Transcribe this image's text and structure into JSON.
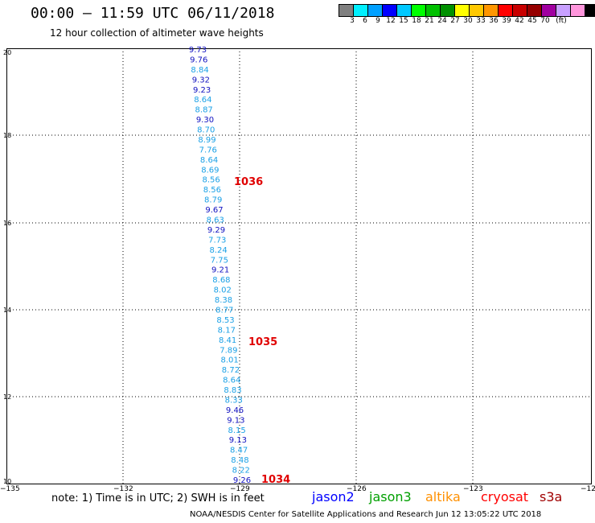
{
  "header": {
    "title": "00:00 – 11:59 UTC 06/11/2018",
    "subtitle": "12 hour collection of altimeter wave heights"
  },
  "legend": {
    "colors": [
      "#808080",
      "#00f0ff",
      "#00a0ff",
      "#0000ff",
      "#00c8ff",
      "#00ff00",
      "#00c000",
      "#009000",
      "#ffff00",
      "#ffc800",
      "#ff9600",
      "#ff0000",
      "#c80000",
      "#960000",
      "#a000a0",
      "#c8a0ff",
      "#ff96dc",
      "#000000"
    ],
    "labels": [
      "3",
      "6",
      "9",
      "12",
      "15",
      "18",
      "21",
      "24",
      "27",
      "30",
      "33",
      "36",
      "39",
      "42",
      "45",
      "70",
      "(ft)"
    ]
  },
  "axes": {
    "y_labels": [
      "20",
      "18",
      "16",
      "14",
      "12",
      "10"
    ],
    "x_labels": [
      "−135",
      "−132",
      "−129",
      "−126",
      "−123",
      "−12"
    ]
  },
  "observations": [
    {
      "v": "9.73",
      "c": "#1010c0"
    },
    {
      "v": "9.76",
      "c": "#1010c0"
    },
    {
      "v": "8.84",
      "c": "#1aa0e6"
    },
    {
      "v": "9.32",
      "c": "#1010c0"
    },
    {
      "v": "9.23",
      "c": "#1010c0"
    },
    {
      "v": "8.64",
      "c": "#1aa0e6"
    },
    {
      "v": "8.87",
      "c": "#1aa0e6"
    },
    {
      "v": "9.30",
      "c": "#1010c0"
    },
    {
      "v": "8.70",
      "c": "#1aa0e6"
    },
    {
      "v": "8.99",
      "c": "#1aa0e6"
    },
    {
      "v": "7.76",
      "c": "#1aa0e6"
    },
    {
      "v": "8.64",
      "c": "#1aa0e6"
    },
    {
      "v": "8.69",
      "c": "#1aa0e6"
    },
    {
      "v": "8.56",
      "c": "#1aa0e6"
    },
    {
      "v": "8.56",
      "c": "#1aa0e6"
    },
    {
      "v": "8.79",
      "c": "#1aa0e6"
    },
    {
      "v": "9.67",
      "c": "#1010c0"
    },
    {
      "v": "8.63",
      "c": "#1aa0e6"
    },
    {
      "v": "9.29",
      "c": "#1010c0"
    },
    {
      "v": "7.73",
      "c": "#1aa0e6"
    },
    {
      "v": "8.24",
      "c": "#1aa0e6"
    },
    {
      "v": "7.75",
      "c": "#1aa0e6"
    },
    {
      "v": "9.21",
      "c": "#1010c0"
    },
    {
      "v": "8.68",
      "c": "#1aa0e6"
    },
    {
      "v": "8.02",
      "c": "#1aa0e6"
    },
    {
      "v": "8.38",
      "c": "#1aa0e6"
    },
    {
      "v": "8.77",
      "c": "#1aa0e6"
    },
    {
      "v": "8.53",
      "c": "#1aa0e6"
    },
    {
      "v": "8.17",
      "c": "#1aa0e6"
    },
    {
      "v": "8.41",
      "c": "#1aa0e6"
    },
    {
      "v": "7.89",
      "c": "#1aa0e6"
    },
    {
      "v": "8.01",
      "c": "#1aa0e6"
    },
    {
      "v": "8.72",
      "c": "#1aa0e6"
    },
    {
      "v": "8.64",
      "c": "#1aa0e6"
    },
    {
      "v": "8.83",
      "c": "#1aa0e6"
    },
    {
      "v": "8.33",
      "c": "#1aa0e6"
    },
    {
      "v": "9.46",
      "c": "#1010c0"
    },
    {
      "v": "9.13",
      "c": "#1010c0"
    },
    {
      "v": "8.15",
      "c": "#1aa0e6"
    },
    {
      "v": "9.13",
      "c": "#1010c0"
    },
    {
      "v": "8.47",
      "c": "#1aa0e6"
    },
    {
      "v": "8.48",
      "c": "#1aa0e6"
    },
    {
      "v": "8.22",
      "c": "#1aa0e6"
    },
    {
      "v": "9.26",
      "c": "#1010c0"
    }
  ],
  "pressure_labels": [
    "1036",
    "1035",
    "1034"
  ],
  "note": "note:  1) Time is in UTC;  2) SWH is in feet",
  "satellites": [
    {
      "name": "jason2",
      "color": "#0000ff"
    },
    {
      "name": "jason3",
      "color": "#00a000"
    },
    {
      "name": "altika",
      "color": "#ff9000"
    },
    {
      "name": "cryosat",
      "color": "#ff0000"
    },
    {
      "name": "s3a",
      "color": "#a00000"
    }
  ],
  "footer": "NOAA/NESDIS Center for Satellite Applications and Research    Jun 12 13:05:22 UTC 2018"
}
